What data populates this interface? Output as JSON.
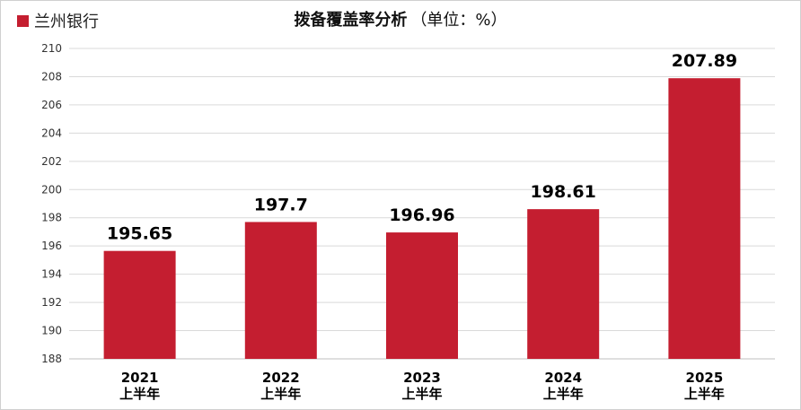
{
  "legend": {
    "label": "兰州银行"
  },
  "title": {
    "main": "拨备覆盖率分析",
    "unit": "（单位：%）"
  },
  "colors": {
    "bar": "#c41e30",
    "grid": "#d9d9d9",
    "axis": "#bfbfbf",
    "text": "#000000"
  },
  "chart_data": {
    "type": "bar",
    "categories": [
      [
        "2021",
        "上半年"
      ],
      [
        "2022",
        "上半年"
      ],
      [
        "2023",
        "上半年"
      ],
      [
        "2024",
        "上半年"
      ],
      [
        "2025",
        "上半年"
      ]
    ],
    "values": [
      195.65,
      197.7,
      196.96,
      198.61,
      207.89
    ],
    "value_labels": [
      "195.65",
      "197.7",
      "196.96",
      "198.61",
      "207.89"
    ],
    "ylim": [
      188,
      210
    ],
    "yticks": [
      188,
      190,
      192,
      194,
      196,
      198,
      200,
      202,
      204,
      206,
      208,
      210
    ],
    "grid": true,
    "title": "拨备覆盖率分析（单位：%）",
    "series_name": "兰州银行"
  }
}
